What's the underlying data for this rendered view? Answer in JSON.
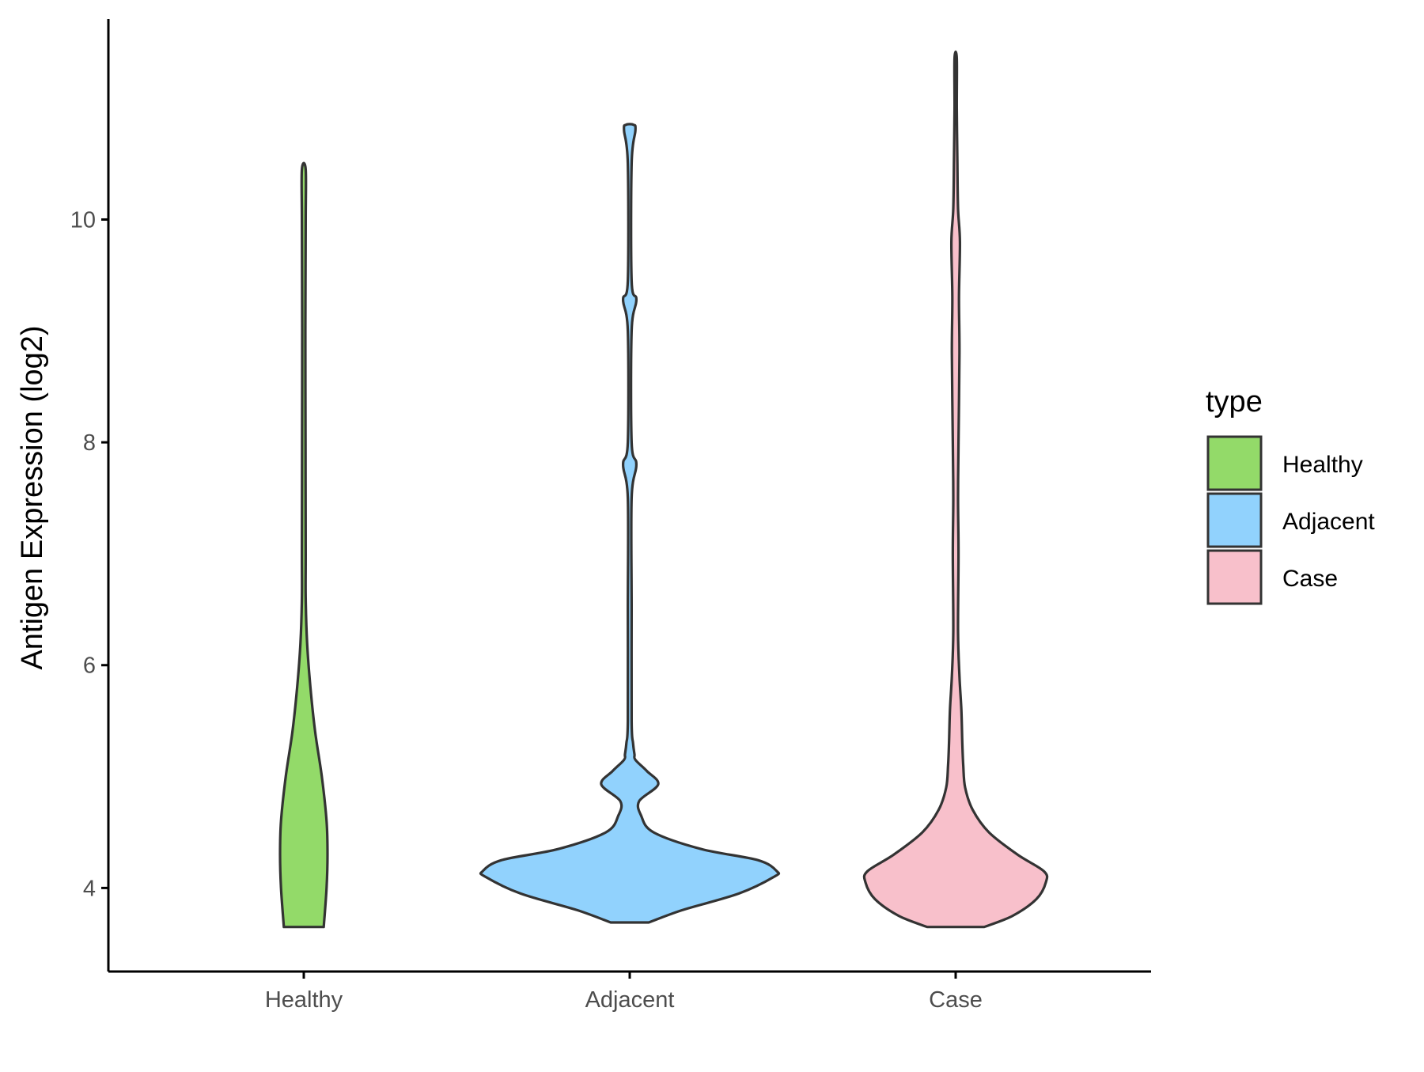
{
  "chart_data": {
    "type": "violin",
    "title": "",
    "xlabel": "",
    "ylabel": "Antigen Expression (log2)",
    "categories": [
      "Healthy",
      "Adjacent",
      "Case"
    ],
    "y_ticks": [
      4,
      6,
      8,
      10
    ],
    "ylim": [
      3.25,
      11.8
    ],
    "grid": false,
    "legend": {
      "title": "type",
      "position": "right",
      "items": [
        {
          "label": "Healthy",
          "color": "#93DA69"
        },
        {
          "label": "Adjacent",
          "color": "#91D2FD"
        },
        {
          "label": "Case",
          "color": "#F8C0CB"
        }
      ]
    },
    "outline_color": "#333333",
    "series": [
      {
        "name": "Healthy",
        "color": "#93DA69",
        "density": [
          [
            3.65,
            0.21
          ],
          [
            4.0,
            0.24
          ],
          [
            4.3,
            0.25
          ],
          [
            4.6,
            0.24
          ],
          [
            5.0,
            0.19
          ],
          [
            5.4,
            0.12
          ],
          [
            5.8,
            0.07
          ],
          [
            6.2,
            0.035
          ],
          [
            6.6,
            0.02
          ],
          [
            7.0,
            0.02
          ],
          [
            8.0,
            0.018
          ],
          [
            9.0,
            0.017
          ],
          [
            10.0,
            0.02
          ],
          [
            10.45,
            0.02
          ]
        ]
      },
      {
        "name": "Adjacent",
        "color": "#91D2FD",
        "density": [
          [
            3.69,
            0.2
          ],
          [
            3.8,
            0.55
          ],
          [
            3.95,
            1.15
          ],
          [
            4.1,
            1.52
          ],
          [
            4.15,
            1.55
          ],
          [
            4.25,
            1.35
          ],
          [
            4.35,
            0.75
          ],
          [
            4.5,
            0.25
          ],
          [
            4.65,
            0.12
          ],
          [
            4.78,
            0.1
          ],
          [
            4.93,
            0.3
          ],
          [
            5.05,
            0.18
          ],
          [
            5.15,
            0.06
          ],
          [
            5.2,
            0.05
          ],
          [
            5.3,
            0.035
          ],
          [
            5.5,
            0.02
          ],
          [
            6.5,
            0.02
          ],
          [
            7.5,
            0.02
          ],
          [
            7.8,
            0.07
          ],
          [
            8.0,
            0.02
          ],
          [
            9.0,
            0.02
          ],
          [
            9.28,
            0.07
          ],
          [
            9.45,
            0.02
          ],
          [
            10.5,
            0.02
          ],
          [
            10.8,
            0.06
          ],
          [
            10.85,
            0.04
          ]
        ]
      },
      {
        "name": "Case",
        "color": "#F8C0CB",
        "density": [
          [
            3.65,
            0.3
          ],
          [
            3.75,
            0.6
          ],
          [
            3.9,
            0.85
          ],
          [
            4.05,
            0.95
          ],
          [
            4.15,
            0.93
          ],
          [
            4.3,
            0.65
          ],
          [
            4.5,
            0.35
          ],
          [
            4.7,
            0.18
          ],
          [
            4.9,
            0.1
          ],
          [
            5.1,
            0.08
          ],
          [
            5.3,
            0.07
          ],
          [
            5.6,
            0.06
          ],
          [
            5.9,
            0.04
          ],
          [
            6.3,
            0.025
          ],
          [
            7.0,
            0.03
          ],
          [
            7.5,
            0.025
          ],
          [
            8.0,
            0.03
          ],
          [
            8.8,
            0.04
          ],
          [
            9.3,
            0.035
          ],
          [
            9.8,
            0.045
          ],
          [
            10.1,
            0.025
          ],
          [
            10.5,
            0.018
          ],
          [
            11.0,
            0.012
          ],
          [
            11.45,
            0.012
          ]
        ]
      }
    ]
  }
}
